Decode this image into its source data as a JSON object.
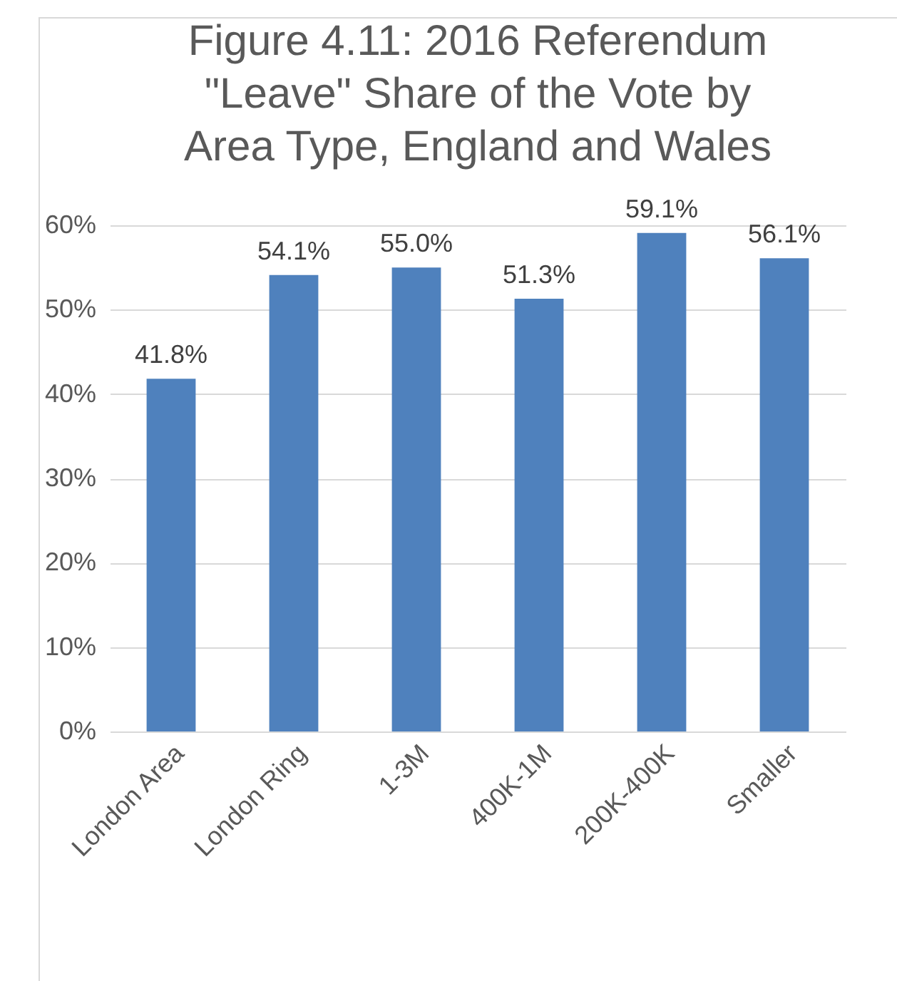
{
  "chart_data": {
    "type": "bar",
    "title": "Figure 4.11: 2016 Referendum \"Leave\" Share of the Vote by Area Type, England and Wales",
    "categories": [
      "London Area",
      "London Ring",
      "1-3M",
      "400K-1M",
      "200K-400K",
      "Smaller"
    ],
    "values": [
      41.8,
      54.1,
      55.0,
      51.3,
      59.1,
      56.1
    ],
    "value_labels": [
      "41.8%",
      "54.1%",
      "55.0%",
      "51.3%",
      "59.1%",
      "56.1%"
    ],
    "color": "#4f81bd",
    "ylim": [
      0,
      60
    ],
    "yticks": [
      {
        "value": 0,
        "label": "0%"
      },
      {
        "value": 10,
        "label": "10%"
      },
      {
        "value": 20,
        "label": "20%"
      },
      {
        "value": 30,
        "label": "30%"
      },
      {
        "value": 40,
        "label": "40%"
      },
      {
        "value": 50,
        "label": "50%"
      },
      {
        "value": 60,
        "label": "60%"
      }
    ],
    "grid": "y"
  }
}
